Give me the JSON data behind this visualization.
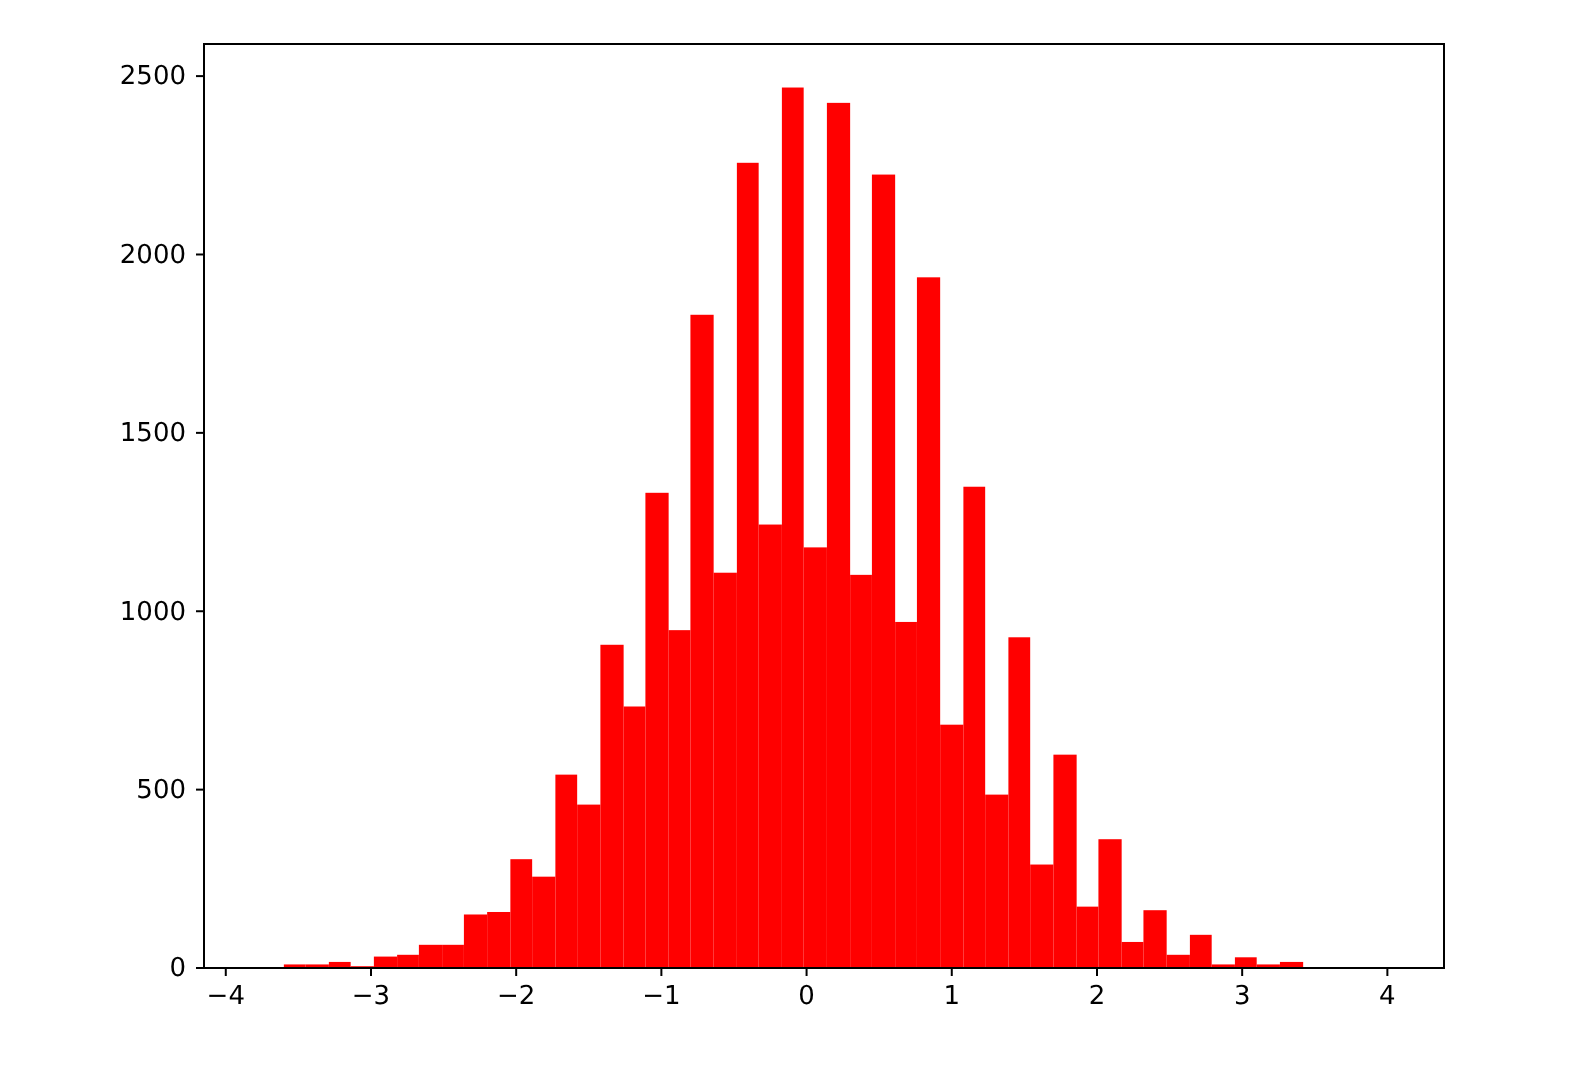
{
  "chart_data": {
    "type": "histogram",
    "color": "#ff0000",
    "bins": [
      -3.6,
      -3.45,
      -3.29,
      -3.14,
      -2.98,
      -2.82,
      -2.67,
      -2.51,
      -2.36,
      -2.2,
      -2.04,
      -1.89,
      -1.73,
      -1.58,
      -1.42,
      -1.26,
      -1.11,
      -0.95,
      -0.8,
      -0.64,
      -0.48,
      -0.33,
      -0.17,
      -0.02,
      0.14,
      0.3,
      0.45,
      0.61,
      0.76,
      0.92,
      1.08,
      1.23,
      1.39,
      1.54,
      1.7,
      1.86,
      2.01,
      2.17,
      2.32,
      2.48,
      2.64,
      2.79,
      2.95,
      3.1,
      3.26,
      3.42
    ],
    "values": [
      10,
      10,
      17,
      5,
      32,
      37,
      65,
      65,
      150,
      157,
      305,
      256,
      542,
      458,
      906,
      733,
      1332,
      947,
      1831,
      1108,
      2257,
      1243,
      2468,
      1179,
      2425,
      1102,
      2224,
      970,
      1936,
      682,
      1349,
      486,
      927,
      290,
      598,
      172,
      361,
      73,
      162,
      37,
      93,
      10,
      30,
      10,
      17
    ],
    "xlim": [
      -4.15,
      4.39
    ],
    "ylim": [
      0,
      2590
    ],
    "xticks": [
      {
        "value": -4,
        "label": "−4"
      },
      {
        "value": -3,
        "label": "−3"
      },
      {
        "value": -2,
        "label": "−2"
      },
      {
        "value": -1,
        "label": "−1"
      },
      0,
      1,
      2,
      3,
      4
    ],
    "yticks": [
      0,
      500,
      1000,
      1500,
      2000,
      2500
    ],
    "grid": false
  }
}
